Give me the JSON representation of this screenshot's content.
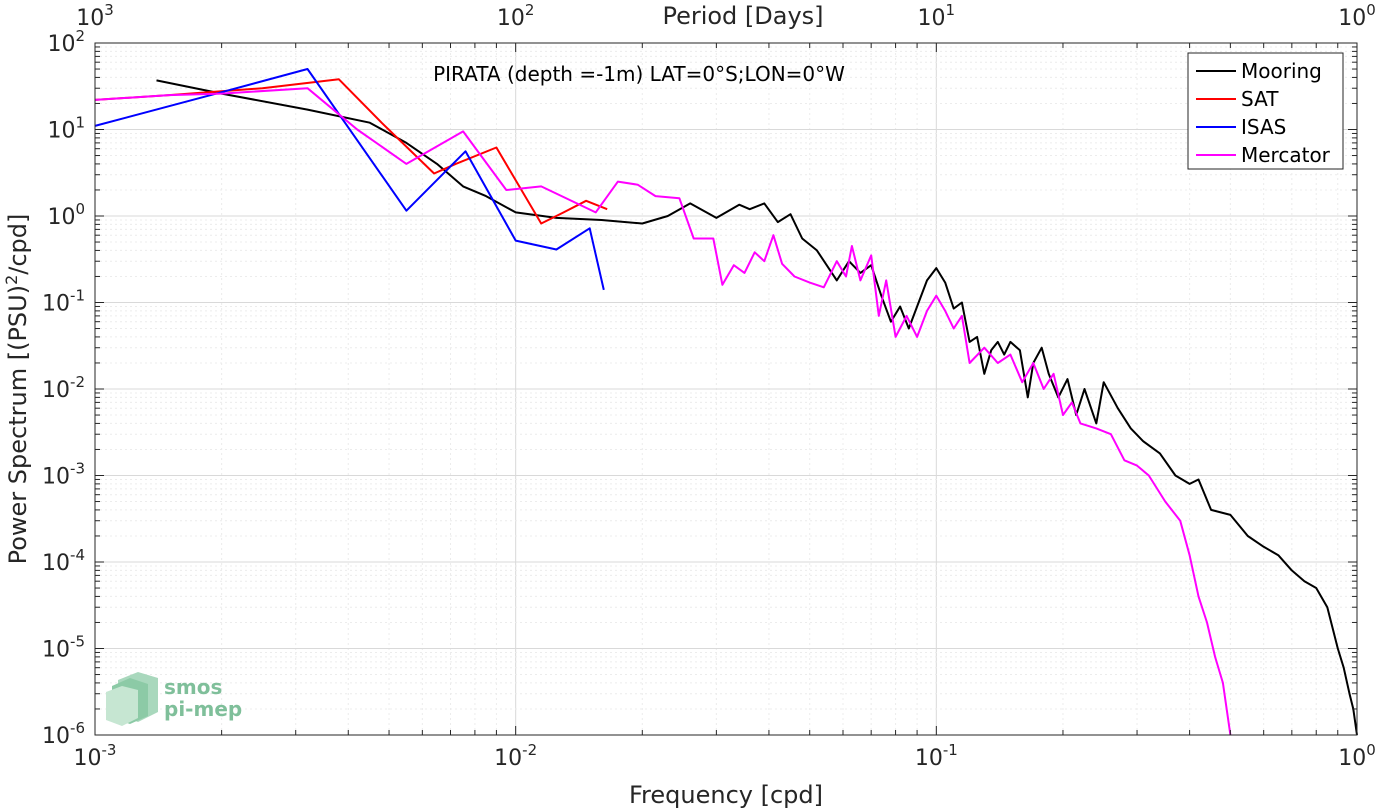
{
  "chart_data": {
    "type": "line",
    "title": "PIRATA (depth =-1m) LAT=0°S;LON=0°W",
    "xlabel": "Frequency [cpd]",
    "ylabel": "Power Spectrum [(PSU)²/cpd]",
    "ylabel_parts": {
      "main": "Power Spectrum [(PSU)",
      "sup": "2",
      "tail": "/cpd]"
    },
    "top_xlabel": "Period [Days]",
    "xscale": "log",
    "yscale": "log",
    "xlim": [
      0.001,
      1
    ],
    "ylim": [
      1e-06,
      100
    ],
    "grid": true,
    "legend_position": "top-right",
    "x_ticks": [
      {
        "value": 0.001,
        "base": "10",
        "exp": "-3"
      },
      {
        "value": 0.01,
        "base": "10",
        "exp": "-2"
      },
      {
        "value": 0.1,
        "base": "10",
        "exp": "-1"
      },
      {
        "value": 1,
        "base": "10",
        "exp": "0"
      }
    ],
    "top_ticks": [
      {
        "value": 0.001,
        "base": "10",
        "exp": "3"
      },
      {
        "value": 0.01,
        "base": "10",
        "exp": "2"
      },
      {
        "value": 0.1,
        "base": "10",
        "exp": "1"
      },
      {
        "value": 1,
        "base": "10",
        "exp": "0"
      }
    ],
    "y_ticks": [
      {
        "value": 100,
        "base": "10",
        "exp": "2"
      },
      {
        "value": 10,
        "base": "10",
        "exp": "1"
      },
      {
        "value": 1,
        "base": "10",
        "exp": "0"
      },
      {
        "value": 0.1,
        "base": "10",
        "exp": "-1"
      },
      {
        "value": 0.01,
        "base": "10",
        "exp": "-2"
      },
      {
        "value": 0.001,
        "base": "10",
        "exp": "-3"
      },
      {
        "value": 0.0001,
        "base": "10",
        "exp": "-4"
      },
      {
        "value": 1e-05,
        "base": "10",
        "exp": "-5"
      },
      {
        "value": 1e-06,
        "base": "10",
        "exp": "-6"
      }
    ],
    "series": [
      {
        "name": "Mooring",
        "color": "#000000",
        "points": [
          [
            0.0014,
            37
          ],
          [
            0.002,
            26
          ],
          [
            0.0032,
            17
          ],
          [
            0.0045,
            12
          ],
          [
            0.0055,
            7
          ],
          [
            0.0065,
            4
          ],
          [
            0.0075,
            2.2
          ],
          [
            0.0085,
            1.7
          ],
          [
            0.01,
            1.1
          ],
          [
            0.0125,
            0.95
          ],
          [
            0.016,
            0.9
          ],
          [
            0.02,
            0.82
          ],
          [
            0.023,
            1.0
          ],
          [
            0.026,
            1.4
          ],
          [
            0.03,
            0.95
          ],
          [
            0.034,
            1.35
          ],
          [
            0.036,
            1.2
          ],
          [
            0.039,
            1.4
          ],
          [
            0.042,
            0.85
          ],
          [
            0.045,
            1.05
          ],
          [
            0.048,
            0.55
          ],
          [
            0.052,
            0.4
          ],
          [
            0.058,
            0.18
          ],
          [
            0.062,
            0.3
          ],
          [
            0.066,
            0.22
          ],
          [
            0.07,
            0.27
          ],
          [
            0.074,
            0.12
          ],
          [
            0.078,
            0.06
          ],
          [
            0.082,
            0.09
          ],
          [
            0.086,
            0.05
          ],
          [
            0.09,
            0.09
          ],
          [
            0.095,
            0.18
          ],
          [
            0.1,
            0.25
          ],
          [
            0.105,
            0.17
          ],
          [
            0.11,
            0.085
          ],
          [
            0.115,
            0.1
          ],
          [
            0.12,
            0.035
          ],
          [
            0.125,
            0.04
          ],
          [
            0.13,
            0.015
          ],
          [
            0.135,
            0.028
          ],
          [
            0.14,
            0.035
          ],
          [
            0.145,
            0.025
          ],
          [
            0.15,
            0.035
          ],
          [
            0.158,
            0.028
          ],
          [
            0.165,
            0.008
          ],
          [
            0.17,
            0.02
          ],
          [
            0.178,
            0.03
          ],
          [
            0.185,
            0.015
          ],
          [
            0.195,
            0.008
          ],
          [
            0.205,
            0.013
          ],
          [
            0.215,
            0.005
          ],
          [
            0.225,
            0.01
          ],
          [
            0.24,
            0.004
          ],
          [
            0.25,
            0.012
          ],
          [
            0.27,
            0.006
          ],
          [
            0.29,
            0.0035
          ],
          [
            0.31,
            0.0025
          ],
          [
            0.34,
            0.0018
          ],
          [
            0.37,
            0.001
          ],
          [
            0.4,
            0.0008
          ],
          [
            0.42,
            0.0009
          ],
          [
            0.45,
            0.0004
          ],
          [
            0.5,
            0.00035
          ],
          [
            0.55,
            0.0002
          ],
          [
            0.6,
            0.00015
          ],
          [
            0.65,
            0.00012
          ],
          [
            0.7,
            8e-05
          ],
          [
            0.75,
            6e-05
          ],
          [
            0.8,
            5e-05
          ],
          [
            0.85,
            3e-05
          ],
          [
            0.9,
            1e-05
          ],
          [
            0.93,
            6e-06
          ],
          [
            0.96,
            3e-06
          ],
          [
            0.98,
            2e-06
          ],
          [
            1.0,
            1e-06
          ]
        ]
      },
      {
        "name": "SAT",
        "color": "#ff0000",
        "points": [
          [
            0.001,
            22
          ],
          [
            0.0015,
            25
          ],
          [
            0.0025,
            30
          ],
          [
            0.0038,
            38
          ],
          [
            0.0048,
            12
          ],
          [
            0.0064,
            3.1
          ],
          [
            0.0072,
            4
          ],
          [
            0.009,
            6.2
          ],
          [
            0.0115,
            0.82
          ],
          [
            0.013,
            1.1
          ],
          [
            0.0147,
            1.5
          ],
          [
            0.0165,
            1.2
          ]
        ]
      },
      {
        "name": "ISAS",
        "color": "#0000ff",
        "points": [
          [
            0.001,
            11
          ],
          [
            0.002,
            27
          ],
          [
            0.0032,
            50
          ],
          [
            0.0055,
            1.15
          ],
          [
            0.0076,
            5.6
          ],
          [
            0.01,
            0.52
          ],
          [
            0.0125,
            0.41
          ],
          [
            0.015,
            0.72
          ],
          [
            0.0162,
            0.14
          ]
        ]
      },
      {
        "name": "Mercator",
        "color": "#ff00ff",
        "points": [
          [
            0.001,
            22
          ],
          [
            0.0015,
            25
          ],
          [
            0.002,
            26
          ],
          [
            0.0032,
            30
          ],
          [
            0.0042,
            10
          ],
          [
            0.0055,
            4
          ],
          [
            0.0075,
            9.5
          ],
          [
            0.0095,
            2
          ],
          [
            0.0115,
            2.2
          ],
          [
            0.0155,
            1.1
          ],
          [
            0.0175,
            2.5
          ],
          [
            0.0195,
            2.3
          ],
          [
            0.0215,
            1.7
          ],
          [
            0.0245,
            1.6
          ],
          [
            0.0265,
            0.55
          ],
          [
            0.0295,
            0.55
          ],
          [
            0.031,
            0.16
          ],
          [
            0.033,
            0.27
          ],
          [
            0.035,
            0.22
          ],
          [
            0.037,
            0.38
          ],
          [
            0.039,
            0.3
          ],
          [
            0.041,
            0.6
          ],
          [
            0.043,
            0.28
          ],
          [
            0.046,
            0.2
          ],
          [
            0.05,
            0.17
          ],
          [
            0.054,
            0.15
          ],
          [
            0.058,
            0.3
          ],
          [
            0.061,
            0.2
          ],
          [
            0.063,
            0.45
          ],
          [
            0.066,
            0.18
          ],
          [
            0.07,
            0.35
          ],
          [
            0.073,
            0.07
          ],
          [
            0.076,
            0.18
          ],
          [
            0.08,
            0.04
          ],
          [
            0.085,
            0.07
          ],
          [
            0.09,
            0.04
          ],
          [
            0.095,
            0.08
          ],
          [
            0.1,
            0.12
          ],
          [
            0.105,
            0.08
          ],
          [
            0.11,
            0.05
          ],
          [
            0.115,
            0.07
          ],
          [
            0.12,
            0.02
          ],
          [
            0.13,
            0.03
          ],
          [
            0.14,
            0.02
          ],
          [
            0.15,
            0.025
          ],
          [
            0.16,
            0.012
          ],
          [
            0.17,
            0.02
          ],
          [
            0.18,
            0.01
          ],
          [
            0.19,
            0.015
          ],
          [
            0.2,
            0.005
          ],
          [
            0.21,
            0.007
          ],
          [
            0.22,
            0.004
          ],
          [
            0.24,
            0.0035
          ],
          [
            0.26,
            0.003
          ],
          [
            0.28,
            0.0015
          ],
          [
            0.3,
            0.0013
          ],
          [
            0.32,
            0.001
          ],
          [
            0.35,
            0.0005
          ],
          [
            0.38,
            0.0003
          ],
          [
            0.4,
            0.00012
          ],
          [
            0.42,
            4e-05
          ],
          [
            0.44,
            2e-05
          ],
          [
            0.46,
            8e-06
          ],
          [
            0.48,
            4e-06
          ],
          [
            0.5,
            1e-06
          ]
        ]
      }
    ]
  },
  "logo": {
    "line1": "smos",
    "line2": "pi-mep",
    "color": "#7fbf9a"
  }
}
